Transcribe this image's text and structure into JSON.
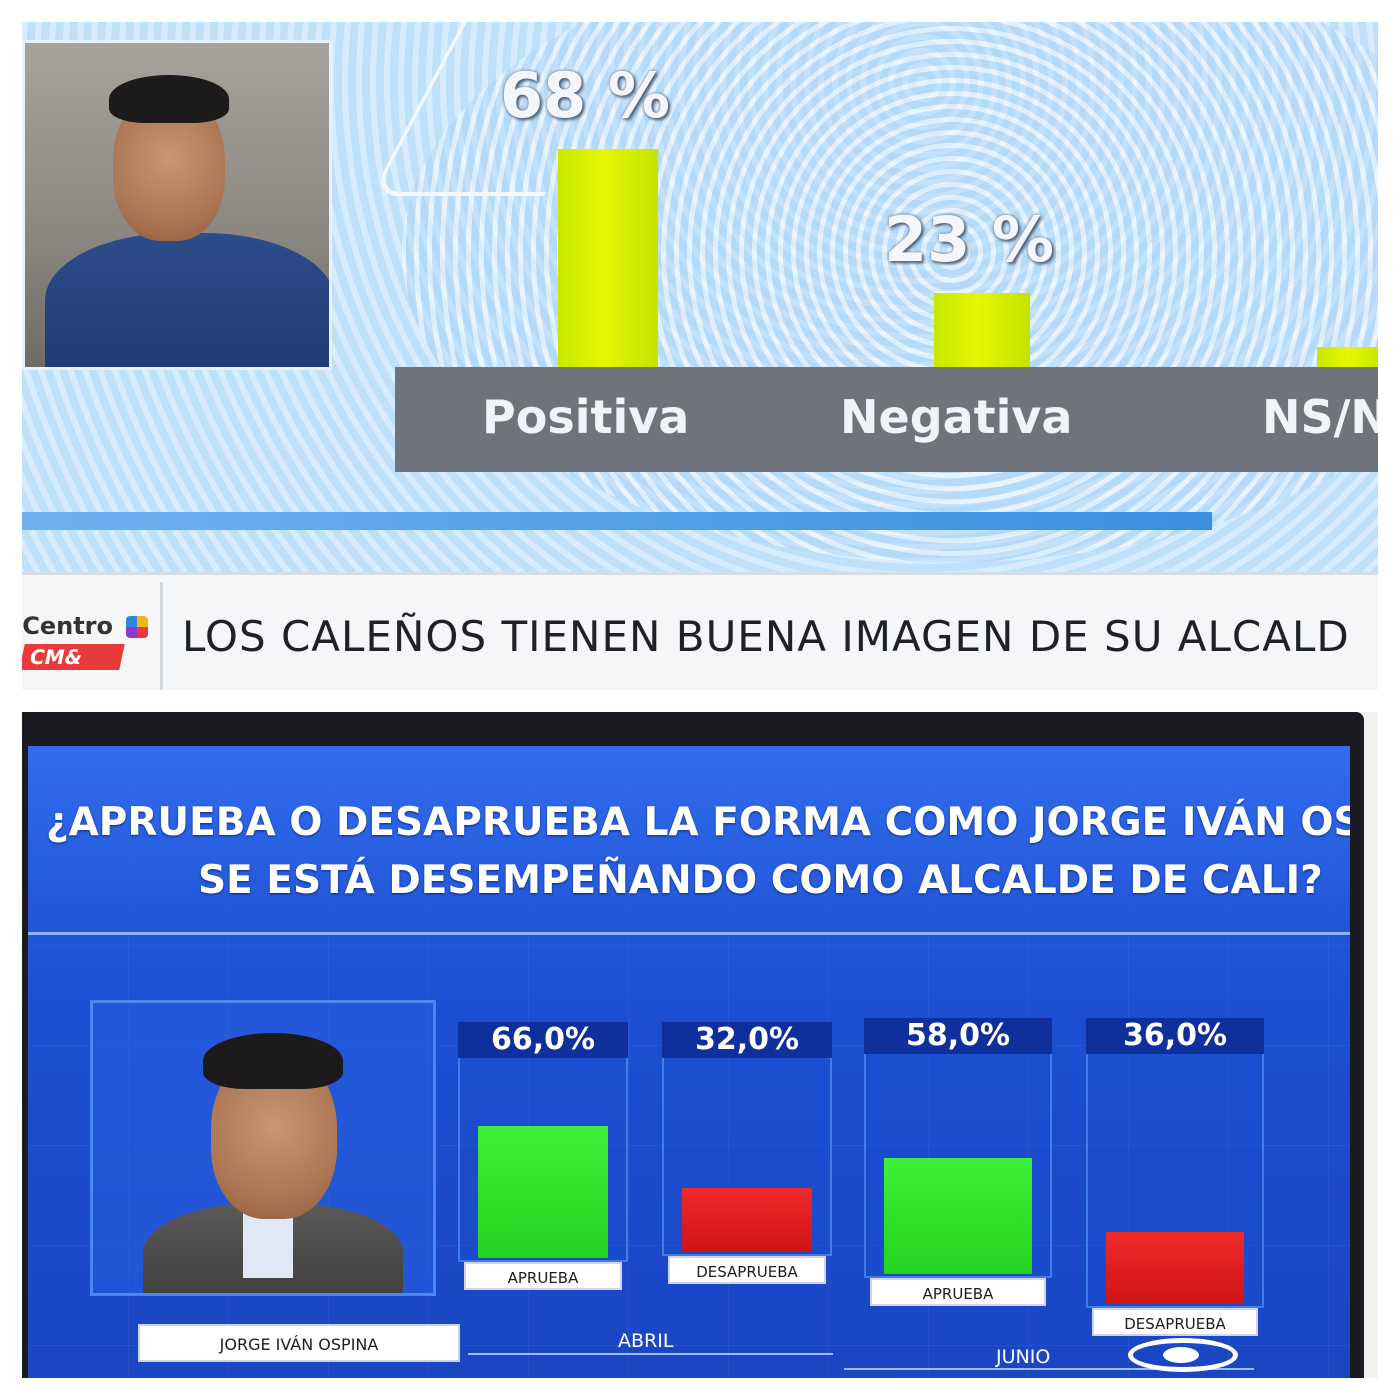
{
  "chart_data": [
    {
      "type": "bar",
      "categories": [
        "Positiva",
        "Negativa",
        "NS/N"
      ],
      "values": [
        68,
        23,
        null
      ],
      "value_labels": [
        "68 %",
        "23 %",
        ""
      ],
      "ticker": "LOS CALEÑOS TIENEN BUENA IMAGEN DE SU ALCALD",
      "logo_text": [
        "iCentro",
        "CM&"
      ],
      "bar_color": "#d8f000"
    },
    {
      "type": "bar",
      "title_lines": [
        "¿APRUEBA O DESAPRUEBA LA FORMA COMO JORGE IVÁN OSPINA",
        "SE ESTÁ DESEMPEÑANDO COMO ALCALDE DE CALI?"
      ],
      "person_name": "JORGE IVÁN OSPINA",
      "groups": [
        "ABRIL",
        "JUNIO"
      ],
      "categories": [
        "APRUEBA",
        "DESAPRUEBA",
        "APRUEBA",
        "DESAPRUEBA"
      ],
      "group_of_category": [
        "ABRIL",
        "ABRIL",
        "JUNIO",
        "JUNIO"
      ],
      "values": [
        66.0,
        32.0,
        58.0,
        36.0
      ],
      "value_labels": [
        "66,0%",
        "32,0%",
        "58,0%",
        "36,0%"
      ],
      "colors": [
        "#2fe02a",
        "#e01c1c",
        "#2fe02a",
        "#e01c1c"
      ]
    }
  ]
}
